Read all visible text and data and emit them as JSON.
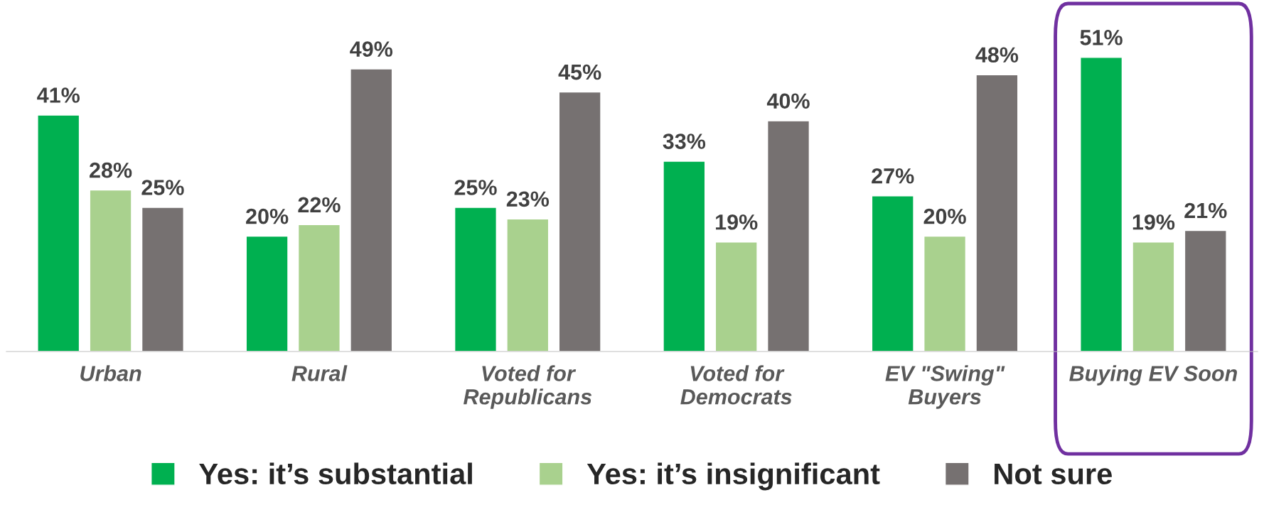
{
  "chart_data": {
    "type": "bar",
    "categories": [
      "Urban",
      "Rural",
      "Voted for\nRepublicans",
      "Voted for\nDemocrats",
      "EV \"Swing\"\nBuyers",
      "Buying EV Soon"
    ],
    "series": [
      {
        "name": "Yes: it’s substantial",
        "color": "#00b050",
        "values": [
          41,
          20,
          25,
          33,
          27,
          51
        ],
        "value_labels": [
          "41%",
          "20%",
          "25%",
          "33%",
          "27%",
          "51%"
        ]
      },
      {
        "name": "Yes: it’s insignificant",
        "color": "#a9d18e",
        "values": [
          28,
          22,
          23,
          19,
          20,
          19
        ],
        "value_labels": [
          "28%",
          "22%",
          "23%",
          "19%",
          "20%",
          "19%"
        ]
      },
      {
        "name": "Not sure",
        "color": "#767171",
        "values": [
          25,
          49,
          45,
          40,
          48,
          21
        ],
        "value_labels": [
          "25%",
          "49%",
          "45%",
          "40%",
          "48%",
          "21%"
        ]
      }
    ],
    "legend": "bottom",
    "grid": false
  }
}
